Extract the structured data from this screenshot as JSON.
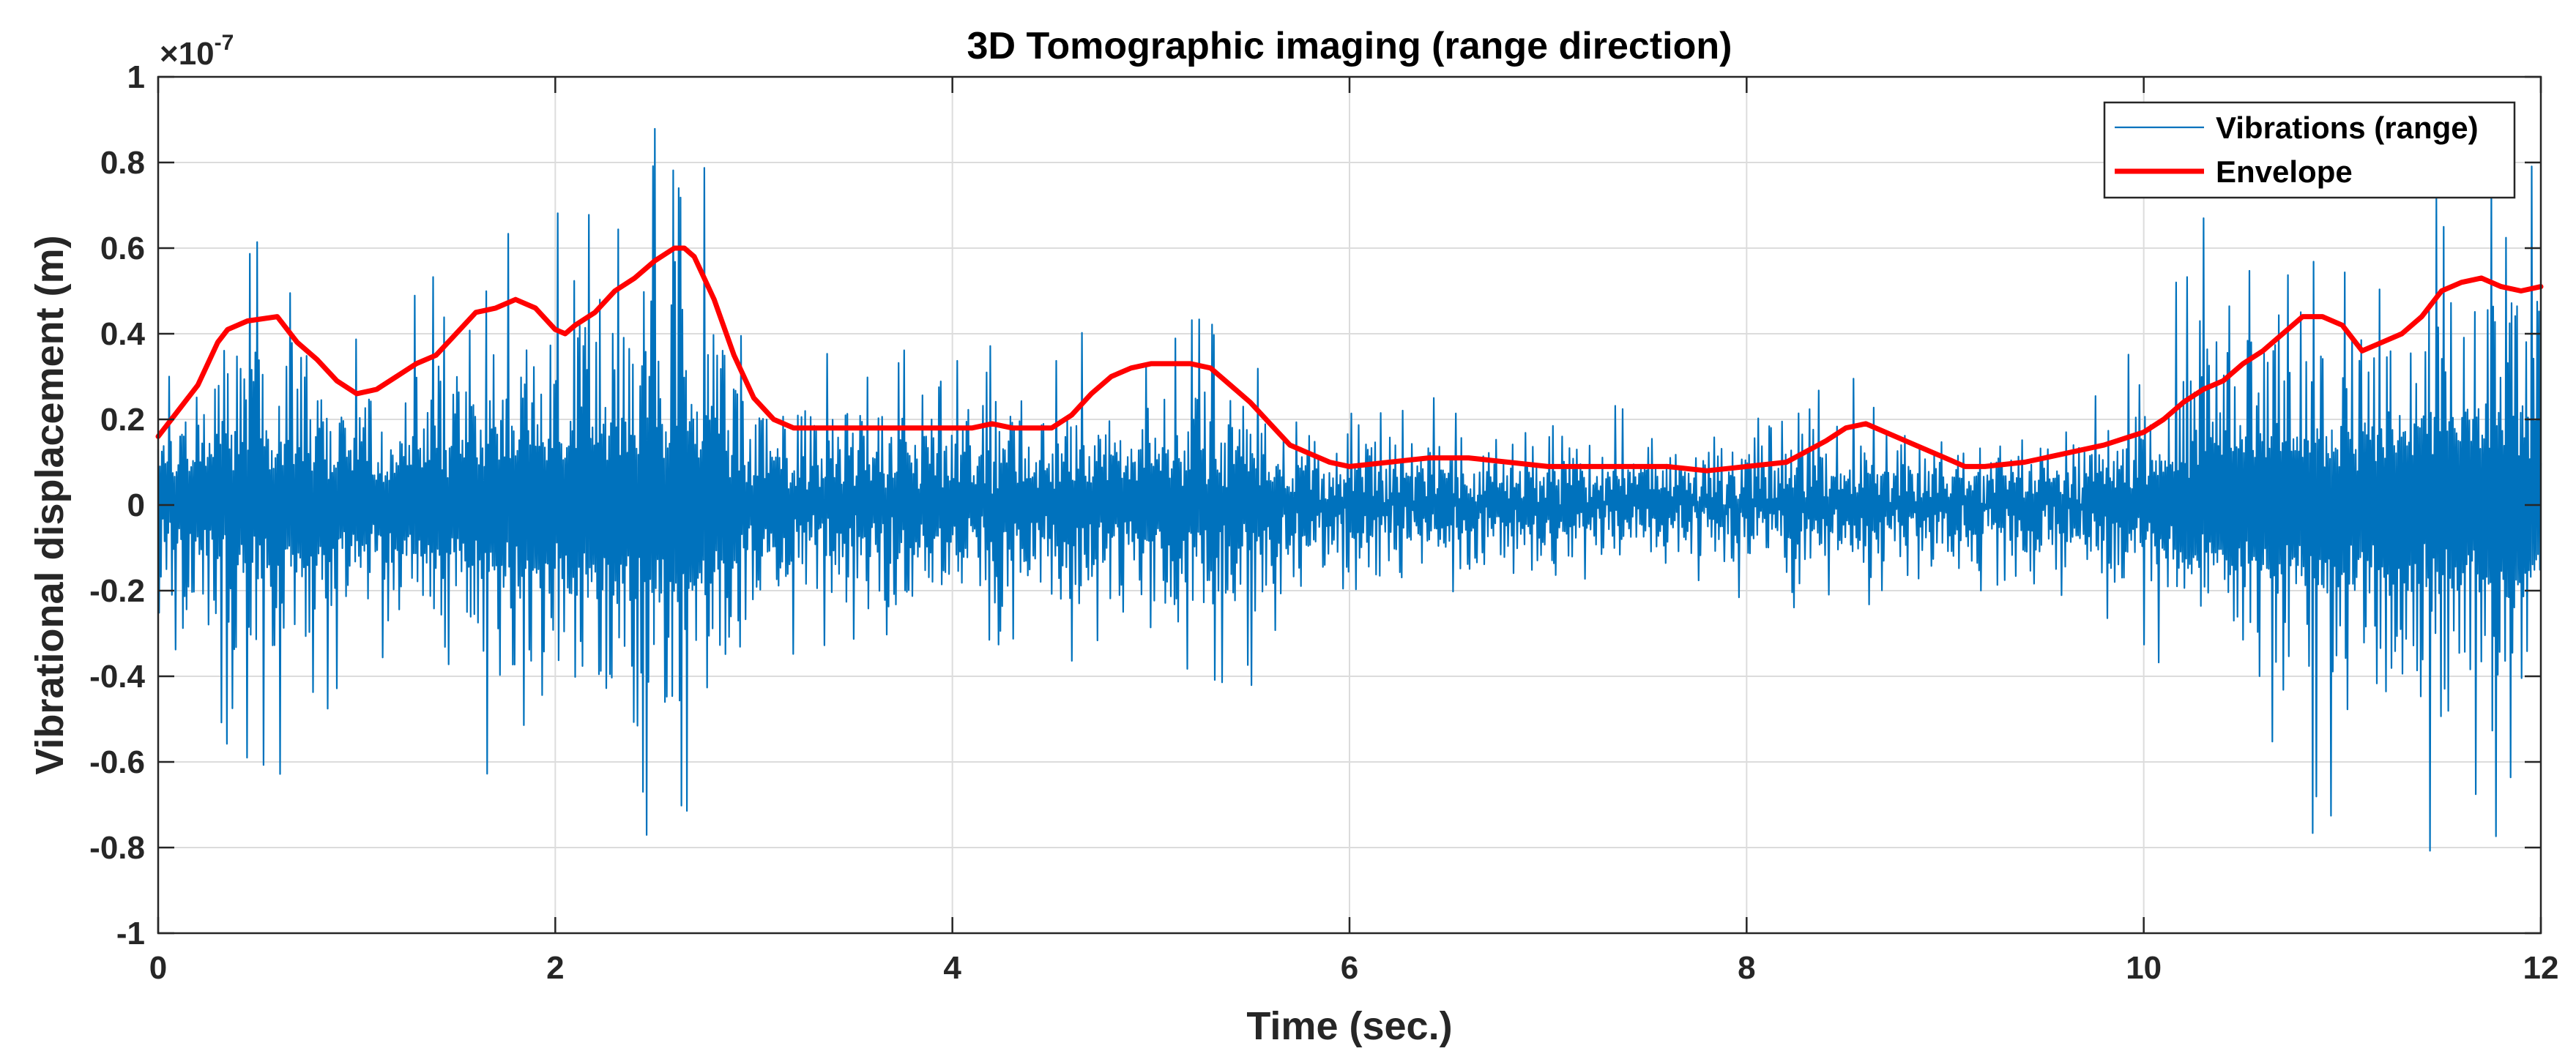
{
  "chart_data": {
    "type": "line",
    "title": "3D Tomographic imaging (range direction)",
    "xlabel": "Time (sec.)",
    "ylabel": "Vibrational displacement (m)",
    "xlim": [
      0,
      12
    ],
    "ylim": [
      -1,
      1
    ],
    "y_scale_label": "×10",
    "y_scale_exponent": "-7",
    "xticks": [
      "0",
      "2",
      "4",
      "6",
      "8",
      "10",
      "12"
    ],
    "yticks": [
      "-1",
      "-0.8",
      "-0.6",
      "-0.4",
      "-0.2",
      "0",
      "0.2",
      "0.4",
      "0.6",
      "0.8",
      "1"
    ],
    "grid": true,
    "legend_position": "top-right",
    "colors": {
      "vibrations": "#0072BD",
      "envelope": "#FF0000",
      "grid": "#DCDCDC",
      "axes": "#262626"
    },
    "series": [
      {
        "name": "Vibrations (range)",
        "style": "thin-line",
        "amplitude_envelope": {
          "x": [
            0,
            0.25,
            0.5,
            0.7,
            1.0,
            1.3,
            1.6,
            1.8,
            2.05,
            2.3,
            2.6,
            2.8,
            3.0,
            3.2,
            4.0,
            4.5,
            4.8,
            5.2,
            5.5,
            5.8,
            6.0,
            7.0,
            7.8,
            8.2,
            8.5,
            8.8,
            9.1,
            9.6,
            10.0,
            10.3,
            10.7,
            11.1,
            11.5,
            11.8,
            12.0
          ],
          "y": [
            0.3,
            0.55,
            0.7,
            0.62,
            0.4,
            0.5,
            0.62,
            0.72,
            0.72,
            0.88,
            0.92,
            0.8,
            0.45,
            0.38,
            0.36,
            0.38,
            0.45,
            0.5,
            0.42,
            0.26,
            0.24,
            0.22,
            0.2,
            0.25,
            0.33,
            0.24,
            0.2,
            0.24,
            0.38,
            0.65,
            0.75,
            0.72,
            0.85,
            0.85,
            0.82
          ]
        }
      },
      {
        "name": "Envelope",
        "style": "thick-line",
        "x": [
          0,
          0.1,
          0.2,
          0.3,
          0.35,
          0.45,
          0.6,
          0.7,
          0.8,
          0.9,
          1.0,
          1.1,
          1.2,
          1.3,
          1.4,
          1.5,
          1.6,
          1.7,
          1.8,
          1.9,
          2.0,
          2.05,
          2.1,
          2.2,
          2.3,
          2.4,
          2.5,
          2.6,
          2.65,
          2.7,
          2.8,
          2.9,
          3.0,
          3.1,
          3.2,
          3.4,
          3.6,
          3.8,
          4.0,
          4.1,
          4.2,
          4.3,
          4.4,
          4.5,
          4.6,
          4.7,
          4.8,
          4.9,
          5.0,
          5.1,
          5.2,
          5.3,
          5.4,
          5.5,
          5.6,
          5.7,
          5.8,
          5.9,
          6.0,
          6.2,
          6.4,
          6.6,
          6.8,
          7.0,
          7.2,
          7.4,
          7.6,
          7.8,
          8.0,
          8.2,
          8.4,
          8.5,
          8.6,
          8.8,
          9.0,
          9.1,
          9.2,
          9.4,
          9.6,
          9.8,
          10.0,
          10.1,
          10.2,
          10.3,
          10.4,
          10.5,
          10.6,
          10.7,
          10.8,
          10.9,
          11.0,
          11.1,
          11.2,
          11.3,
          11.4,
          11.5,
          11.6,
          11.7,
          11.8,
          11.9,
          12.0
        ],
        "y": [
          0.16,
          0.22,
          0.28,
          0.38,
          0.41,
          0.43,
          0.44,
          0.38,
          0.34,
          0.29,
          0.26,
          0.27,
          0.3,
          0.33,
          0.35,
          0.4,
          0.45,
          0.46,
          0.48,
          0.46,
          0.41,
          0.4,
          0.42,
          0.45,
          0.5,
          0.53,
          0.57,
          0.6,
          0.6,
          0.58,
          0.48,
          0.35,
          0.25,
          0.2,
          0.18,
          0.18,
          0.18,
          0.18,
          0.18,
          0.18,
          0.19,
          0.18,
          0.18,
          0.18,
          0.21,
          0.26,
          0.3,
          0.32,
          0.33,
          0.33,
          0.33,
          0.32,
          0.28,
          0.24,
          0.19,
          0.14,
          0.12,
          0.1,
          0.09,
          0.1,
          0.11,
          0.11,
          0.1,
          0.09,
          0.09,
          0.09,
          0.09,
          0.08,
          0.09,
          0.1,
          0.15,
          0.18,
          0.19,
          0.15,
          0.11,
          0.09,
          0.09,
          0.1,
          0.12,
          0.14,
          0.17,
          0.2,
          0.24,
          0.27,
          0.29,
          0.33,
          0.36,
          0.4,
          0.44,
          0.44,
          0.42,
          0.36,
          0.38,
          0.4,
          0.44,
          0.5,
          0.52,
          0.53,
          0.51,
          0.5,
          0.51
        ]
      }
    ]
  }
}
